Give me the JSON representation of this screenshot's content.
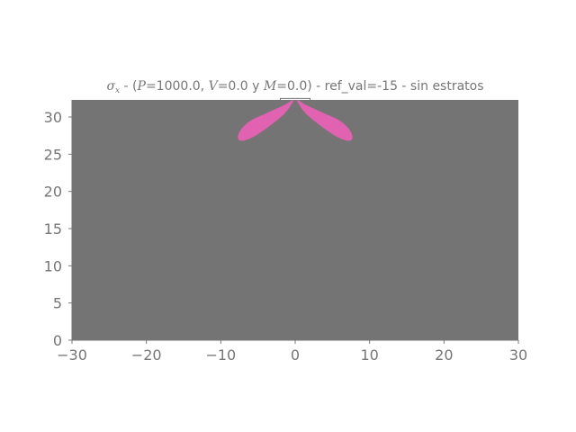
{
  "colors": {
    "background": "#747474",
    "lobe": "#e062b0",
    "text": "#767676",
    "axis": "#767676"
  },
  "title": {
    "sigma_symbol": "σ",
    "sigma_sub": "x",
    "part1": " - (",
    "P_symbol": "P",
    "P_value": "=1000.0, ",
    "V_symbol": "V",
    "V_value": "=0.0 y ",
    "M_symbol": "M",
    "M_value": "=0.0) - ref_val=-15 - sin estratos"
  },
  "chart_data": {
    "type": "contour",
    "xlim": [
      -30,
      30
    ],
    "ylim": [
      0,
      32.3
    ],
    "xticks": [
      -30,
      -20,
      -10,
      0,
      10,
      20,
      30
    ],
    "xtick_labels": [
      "−30",
      "−20",
      "−10",
      "0",
      "10",
      "20",
      "30"
    ],
    "yticks": [
      0,
      5,
      10,
      15,
      20,
      25,
      30
    ],
    "ytick_labels": [
      "0",
      "5",
      "10",
      "15",
      "20",
      "25",
      "30"
    ],
    "grid": false,
    "load_strip": {
      "x": [
        -2,
        2
      ],
      "y_top": 32.5
    },
    "regions": [
      {
        "name": "left-lobe",
        "outline": [
          [
            -0.3,
            32.3
          ],
          [
            -1.5,
            31.6
          ],
          [
            -3.9,
            30.5
          ],
          [
            -6.0,
            29.5
          ],
          [
            -7.3,
            28.3
          ],
          [
            -7.7,
            27.2
          ],
          [
            -7.1,
            26.8
          ],
          [
            -5.5,
            27.4
          ],
          [
            -3.3,
            28.9
          ],
          [
            -1.5,
            30.4
          ],
          [
            -0.5,
            31.7
          ]
        ]
      },
      {
        "name": "right-lobe",
        "outline": [
          [
            0.3,
            32.3
          ],
          [
            1.5,
            31.6
          ],
          [
            3.9,
            30.5
          ],
          [
            6.0,
            29.5
          ],
          [
            7.3,
            28.3
          ],
          [
            7.7,
            27.2
          ],
          [
            7.1,
            26.8
          ],
          [
            5.5,
            27.4
          ],
          [
            3.3,
            28.9
          ],
          [
            1.5,
            30.4
          ],
          [
            0.5,
            31.7
          ]
        ]
      }
    ]
  }
}
